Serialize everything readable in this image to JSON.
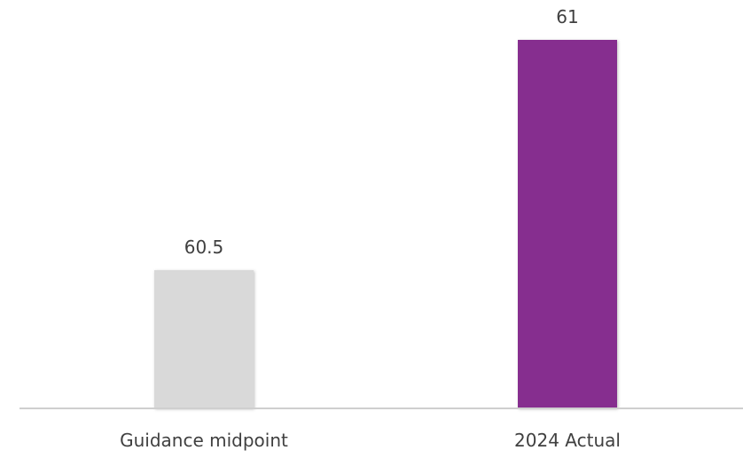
{
  "chart_data": {
    "type": "bar",
    "title": "",
    "xlabel": "",
    "ylabel": "",
    "categories": [
      "Guidance midpoint",
      "2024 Actual"
    ],
    "values": [
      60.5,
      61
    ],
    "data_labels": [
      "60.5",
      "61"
    ],
    "bar_colors": [
      "#d9d9d9",
      "#862e8f"
    ],
    "ylim": [
      60.2,
      61
    ],
    "grid": false,
    "legend": "none",
    "colors": {
      "axis": "#cfcfcf",
      "text": "#404040",
      "background": "#ffffff"
    }
  }
}
